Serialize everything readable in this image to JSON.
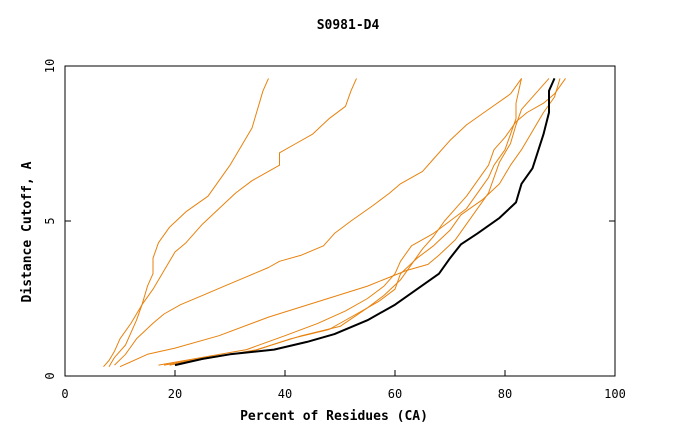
{
  "chart_data": {
    "type": "line",
    "title": "S0981-D4",
    "xlabel": "Percent of Residues (CA)",
    "ylabel": "Distance Cutoff, A",
    "xlim": [
      0,
      100
    ],
    "ylim": [
      0,
      10
    ],
    "xticks": [
      "0",
      "20",
      "40",
      "60",
      "80",
      "100"
    ],
    "yticks": [
      "0",
      "5",
      "10"
    ],
    "grid": false,
    "colors": {
      "highlight": "#000000",
      "others": "#e8820e"
    },
    "series": [
      {
        "highlight": true,
        "points": [
          [
            20,
            0.35
          ],
          [
            25,
            0.55
          ],
          [
            30,
            0.7
          ],
          [
            38,
            0.85
          ],
          [
            44,
            1.1
          ],
          [
            49,
            1.35
          ],
          [
            55,
            1.8
          ],
          [
            60,
            2.3
          ],
          [
            64,
            2.8
          ],
          [
            68,
            3.3
          ],
          [
            70,
            3.8
          ],
          [
            72,
            4.25
          ],
          [
            75,
            4.6
          ],
          [
            79,
            5.1
          ],
          [
            82,
            5.6
          ],
          [
            83,
            6.2
          ],
          [
            85,
            6.7
          ],
          [
            87,
            7.8
          ],
          [
            88,
            8.5
          ],
          [
            88,
            9.2
          ],
          [
            89,
            9.6
          ]
        ]
      },
      {
        "points": [
          [
            7,
            0.3
          ],
          [
            8,
            0.5
          ],
          [
            9,
            0.8
          ],
          [
            10,
            1.2
          ],
          [
            12,
            1.7
          ],
          [
            14,
            2.3
          ],
          [
            15,
            2.9
          ],
          [
            16,
            3.3
          ],
          [
            16,
            3.8
          ],
          [
            17,
            4.3
          ],
          [
            19,
            4.8
          ],
          [
            22,
            5.3
          ],
          [
            26,
            5.8
          ],
          [
            28,
            6.3
          ],
          [
            30,
            6.8
          ],
          [
            32,
            7.4
          ],
          [
            34,
            8
          ],
          [
            35,
            8.6
          ],
          [
            36,
            9.2
          ],
          [
            37,
            9.6
          ]
        ]
      },
      {
        "points": [
          [
            8,
            0.3
          ],
          [
            9,
            0.6
          ],
          [
            11,
            1
          ],
          [
            13,
            1.8
          ],
          [
            14,
            2.3
          ],
          [
            16,
            2.8
          ],
          [
            18,
            3.4
          ],
          [
            20,
            4
          ],
          [
            22,
            4.3
          ],
          [
            25,
            4.9
          ],
          [
            28,
            5.4
          ],
          [
            31,
            5.9
          ],
          [
            34,
            6.3
          ],
          [
            39,
            6.8
          ],
          [
            39,
            7.2
          ],
          [
            42,
            7.5
          ],
          [
            45,
            7.8
          ],
          [
            48,
            8.3
          ],
          [
            51,
            8.7
          ],
          [
            52,
            9.2
          ],
          [
            53,
            9.6
          ]
        ]
      },
      {
        "points": [
          [
            9,
            0.35
          ],
          [
            11,
            0.7
          ],
          [
            13,
            1.2
          ],
          [
            16,
            1.7
          ],
          [
            18,
            2
          ],
          [
            21,
            2.3
          ],
          [
            25,
            2.6
          ],
          [
            29,
            2.9
          ],
          [
            33,
            3.2
          ],
          [
            37,
            3.5
          ],
          [
            39,
            3.7
          ],
          [
            43,
            3.9
          ],
          [
            47,
            4.2
          ],
          [
            49,
            4.6
          ],
          [
            52,
            5
          ],
          [
            56,
            5.5
          ],
          [
            59,
            5.9
          ],
          [
            61,
            6.2
          ],
          [
            65,
            6.6
          ],
          [
            67,
            7
          ],
          [
            70,
            7.6
          ],
          [
            73,
            8.1
          ],
          [
            77,
            8.6
          ],
          [
            81,
            9.1
          ],
          [
            83,
            9.6
          ]
        ]
      },
      {
        "points": [
          [
            10,
            0.3
          ],
          [
            15,
            0.7
          ],
          [
            20,
            0.9
          ],
          [
            28,
            1.3
          ],
          [
            37,
            1.9
          ],
          [
            46,
            2.4
          ],
          [
            55,
            2.9
          ],
          [
            62,
            3.4
          ],
          [
            66,
            3.6
          ],
          [
            68,
            3.9
          ],
          [
            71,
            4.4
          ],
          [
            73,
            4.9
          ],
          [
            75,
            5.4
          ],
          [
            77,
            5.9
          ],
          [
            78,
            6.4
          ],
          [
            79,
            6.9
          ],
          [
            81,
            7.5
          ],
          [
            82,
            8.1
          ],
          [
            83,
            8.6
          ],
          [
            86,
            9.2
          ],
          [
            88,
            9.6
          ]
        ]
      },
      {
        "points": [
          [
            17,
            0.35
          ],
          [
            25,
            0.6
          ],
          [
            33,
            0.85
          ],
          [
            40,
            1.3
          ],
          [
            46,
            1.7
          ],
          [
            51,
            2.1
          ],
          [
            55,
            2.5
          ],
          [
            58,
            2.9
          ],
          [
            60,
            3.3
          ],
          [
            61,
            3.7
          ],
          [
            63,
            4.2
          ],
          [
            67,
            4.6
          ],
          [
            70,
            5
          ],
          [
            73,
            5.4
          ],
          [
            75,
            5.9
          ],
          [
            77,
            6.4
          ],
          [
            78,
            6.8
          ],
          [
            80,
            7.3
          ],
          [
            81,
            7.8
          ],
          [
            82,
            8.3
          ],
          [
            82,
            8.8
          ],
          [
            83,
            9.6
          ]
        ]
      },
      {
        "points": [
          [
            18,
            0.35
          ],
          [
            26,
            0.6
          ],
          [
            34,
            0.8
          ],
          [
            43,
            1.3
          ],
          [
            50,
            1.6
          ],
          [
            55,
            2.2
          ],
          [
            58,
            2.6
          ],
          [
            61,
            3.1
          ],
          [
            63,
            3.6
          ],
          [
            65,
            4.1
          ],
          [
            67,
            4.5
          ],
          [
            69,
            5
          ],
          [
            71,
            5.4
          ],
          [
            73,
            5.8
          ],
          [
            75,
            6.3
          ],
          [
            77,
            6.8
          ],
          [
            78,
            7.3
          ],
          [
            80,
            7.7
          ],
          [
            82,
            8.2
          ],
          [
            84,
            8.5
          ],
          [
            87,
            8.8
          ],
          [
            89,
            9.1
          ],
          [
            91,
            9.6
          ]
        ]
      },
      {
        "points": [
          [
            19,
            0.35
          ],
          [
            27,
            0.6
          ],
          [
            35,
            0.85
          ],
          [
            41,
            1.2
          ],
          [
            48,
            1.5
          ],
          [
            53,
            2
          ],
          [
            57,
            2.4
          ],
          [
            60,
            2.8
          ],
          [
            61,
            3.3
          ],
          [
            64,
            3.8
          ],
          [
            67,
            4.2
          ],
          [
            70,
            4.7
          ],
          [
            72,
            5.2
          ],
          [
            76,
            5.7
          ],
          [
            79,
            6.2
          ],
          [
            81,
            6.8
          ],
          [
            83,
            7.3
          ],
          [
            85,
            7.9
          ],
          [
            87,
            8.5
          ],
          [
            89,
            9
          ],
          [
            90,
            9.6
          ]
        ]
      }
    ]
  }
}
